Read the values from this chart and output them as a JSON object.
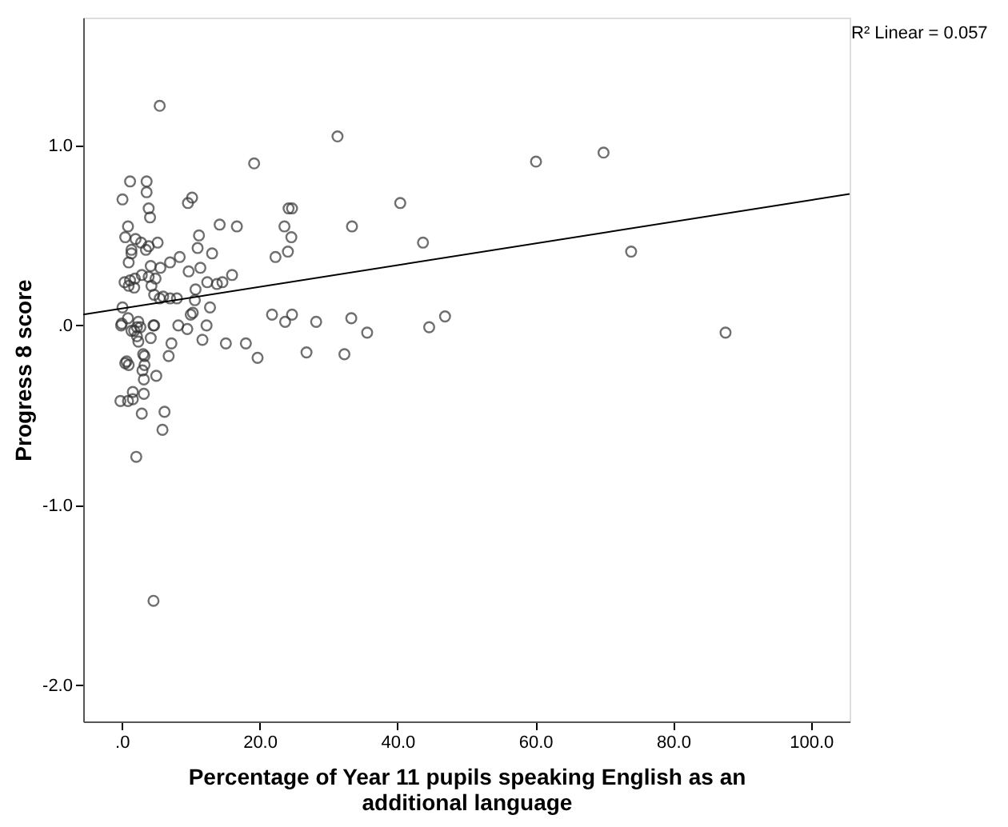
{
  "chart_data": {
    "type": "scatter",
    "xlabel": "Percentage of Year 11 pupils speaking English as an additional language",
    "ylabel": "Progress 8 score",
    "annotations": [
      "R² Linear = 0.057"
    ],
    "xlim": [
      -5.6,
      105.6
    ],
    "ylim": [
      -2.2,
      1.71
    ],
    "xticks": [
      {
        "value": 0,
        "label": ".0"
      },
      {
        "value": 20,
        "label": "20.0"
      },
      {
        "value": 40,
        "label": "40.0"
      },
      {
        "value": 60,
        "label": "60.0"
      },
      {
        "value": 80,
        "label": "80.0"
      },
      {
        "value": 100,
        "label": "100.0"
      }
    ],
    "yticks": [
      {
        "value": -2,
        "label": "-2.0"
      },
      {
        "value": -1,
        "label": "-1.0"
      },
      {
        "value": 0,
        "label": ".0"
      },
      {
        "value": 1,
        "label": "1.0"
      }
    ],
    "grid": false,
    "series": [
      {
        "marker": "circle",
        "color": "#333333",
        "x": [
          5.5,
          19.2,
          1.2,
          3.6,
          3.6,
          0.1,
          9.6,
          10.2,
          24.2,
          24.7,
          3.9,
          4.1,
          0.9,
          14.2,
          16.7,
          23.6,
          24.6,
          0.5,
          11.2,
          2.0,
          2.8,
          3.9,
          5.2,
          3.5,
          1.4,
          1.4,
          11.0,
          13.1,
          22.3,
          24.1,
          1.0,
          8.4,
          7.0,
          5.6,
          4.2,
          9.7,
          11.4,
          16.0,
          0.4,
          1.2,
          1.9,
          2.9,
          3.9,
          4.9,
          4.3,
          1.0,
          1.8,
          10.7,
          12.4,
          13.8,
          14.6,
          4.7,
          5.5,
          6.0,
          7.0,
          8.0,
          10.6,
          0.1,
          12.8,
          10.0,
          10.3,
          21.8,
          23.7,
          24.7,
          0.9,
          0.0,
          2.4,
          2.7,
          4.7,
          8.2,
          9.5,
          12.3,
          1.8,
          2.2,
          2.4,
          7.2,
          11.7,
          15.1,
          18.0,
          19.7,
          6.8,
          3.1,
          3.3,
          0.7,
          3.3,
          -0.1,
          1.4,
          2.2,
          4.6,
          4.2,
          0.5,
          1.0,
          3.0,
          3.2,
          5.0,
          1.6,
          3.2,
          -0.2,
          0.9,
          1.6,
          2.9,
          6.2,
          5.9,
          2.1,
          4.6,
          31.3,
          60.1,
          69.9,
          40.4,
          33.4,
          43.7,
          73.9,
          87.6,
          46.9,
          44.6,
          35.6,
          33.3,
          28.2,
          26.8,
          32.3
        ],
        "values": [
          1.22,
          0.9,
          0.8,
          0.8,
          0.74,
          0.7,
          0.68,
          0.71,
          0.65,
          0.65,
          0.65,
          0.6,
          0.55,
          0.56,
          0.55,
          0.55,
          0.49,
          0.49,
          0.5,
          0.48,
          0.46,
          0.44,
          0.46,
          0.42,
          0.42,
          0.4,
          0.43,
          0.4,
          0.38,
          0.41,
          0.35,
          0.38,
          0.35,
          0.32,
          0.33,
          0.3,
          0.32,
          0.28,
          0.24,
          0.25,
          0.26,
          0.28,
          0.27,
          0.26,
          0.22,
          0.22,
          0.21,
          0.2,
          0.24,
          0.23,
          0.24,
          0.17,
          0.15,
          0.16,
          0.15,
          0.15,
          0.14,
          0.1,
          0.1,
          0.06,
          0.07,
          0.06,
          0.02,
          0.06,
          0.04,
          0.01,
          0.02,
          -0.01,
          0.0,
          0.0,
          -0.02,
          0.0,
          -0.03,
          -0.06,
          -0.09,
          -0.1,
          -0.08,
          -0.1,
          -0.1,
          -0.18,
          -0.17,
          -0.16,
          -0.17,
          -0.2,
          -0.22,
          0.0,
          -0.03,
          -0.01,
          0.0,
          -0.07,
          -0.21,
          -0.22,
          -0.25,
          -0.3,
          -0.28,
          -0.37,
          -0.38,
          -0.42,
          -0.42,
          -0.41,
          -0.49,
          -0.48,
          -0.58,
          -0.73,
          -1.53,
          1.05,
          0.91,
          0.96,
          0.68,
          0.55,
          0.46,
          0.41,
          -0.04,
          0.05,
          -0.01,
          -0.04,
          0.04,
          0.02,
          -0.15,
          -0.16
        ]
      },
      {
        "type": "line",
        "marker": "none",
        "color": "#000000",
        "x": [
          -5.6,
          105.6
        ],
        "values": [
          0.06,
          0.73
        ]
      }
    ]
  }
}
